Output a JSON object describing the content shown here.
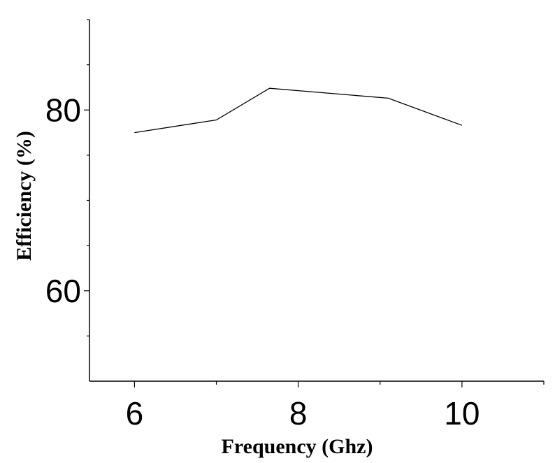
{
  "chart_data": {
    "type": "line",
    "title": "",
    "xlabel": "Frequency (Ghz)",
    "ylabel": "Efficiency (%)",
    "xlim": [
      5.45,
      11.0
    ],
    "ylim": [
      50,
      90
    ],
    "x_ticks_labeled": [
      6,
      8,
      10
    ],
    "y_ticks_labeled": [
      60,
      80
    ],
    "grid": false,
    "series": [
      {
        "x": [
          6,
          7,
          7.65,
          9.1,
          10
        ],
        "values": [
          77.5,
          78.9,
          82.4,
          81.3,
          78.3
        ],
        "color": "#000000"
      }
    ]
  }
}
